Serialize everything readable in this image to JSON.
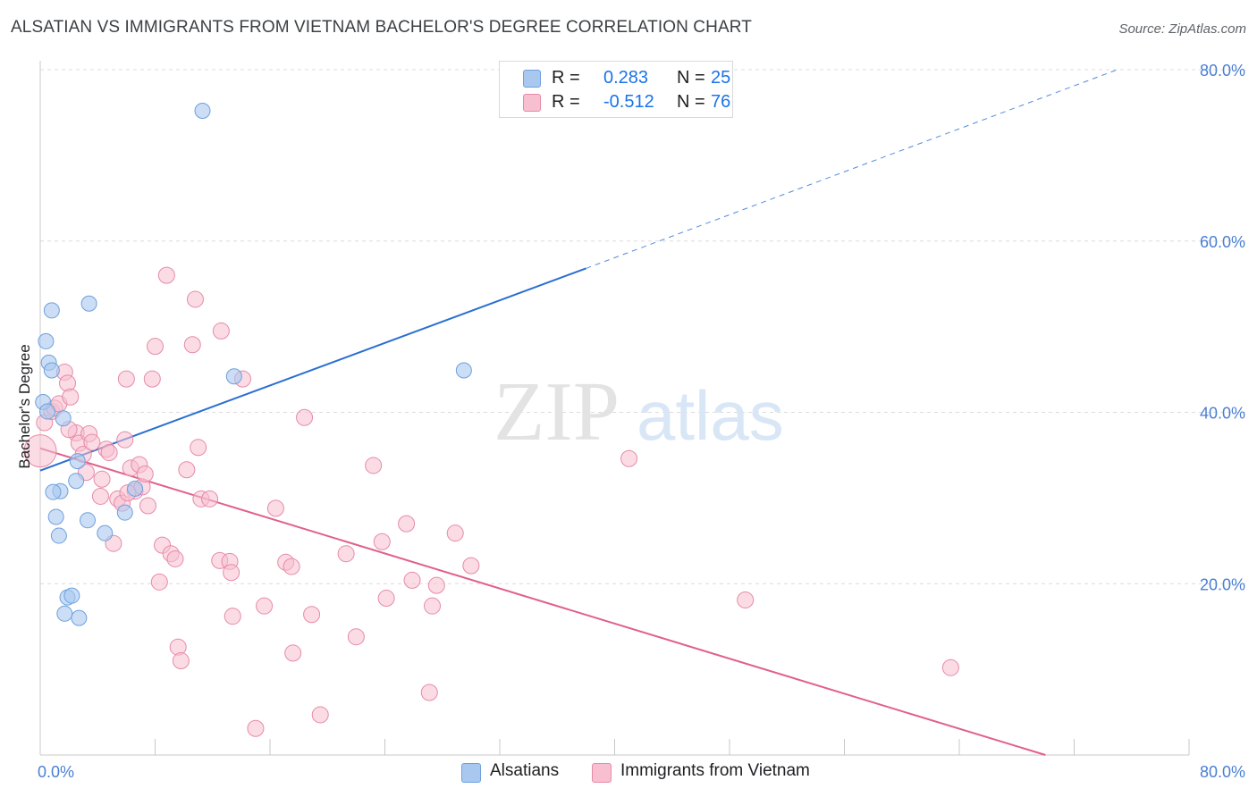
{
  "header": {
    "title": "ALSATIAN VS IMMIGRANTS FROM VIETNAM BACHELOR'S DEGREE CORRELATION CHART",
    "source": "Source: ZipAtlas.com"
  },
  "legend_stats": {
    "rows": [
      {
        "r_label": "R =",
        "r_value": "0.283",
        "n_label": "N =",
        "n_value": "25"
      },
      {
        "r_label": "R =",
        "r_value": "-0.512",
        "n_label": "N =",
        "n_value": "76"
      }
    ]
  },
  "bottom_legend": {
    "series_a": "Alsatians",
    "series_b": "Immigrants from Vietnam"
  },
  "watermark": {
    "zip": "ZIP",
    "atlas": "atlas"
  },
  "colors": {
    "blue_fill": "#a9c8f0",
    "blue_stroke": "#6ea0dc",
    "blue_line": "#2a6fd1",
    "pink_fill": "#f7bfd0",
    "pink_stroke": "#e68aa8",
    "pink_line": "#e0608c",
    "grid": "#dcdcdc",
    "tick_label": "#4a7fd4"
  },
  "chart_data": {
    "type": "scatter",
    "title": "ALSATIAN VS IMMIGRANTS FROM VIETNAM BACHELOR'S DEGREE CORRELATION CHART",
    "xlabel": "",
    "ylabel": "Bachelor's Degree",
    "xlim": [
      0,
      80
    ],
    "ylim": [
      0,
      80
    ],
    "x_tick_labels": [
      "0.0%",
      "80.0%"
    ],
    "y_tick_labels": [
      "20.0%",
      "40.0%",
      "60.0%",
      "80.0%"
    ],
    "y_tick_values": [
      20,
      40,
      60,
      80
    ],
    "grid": true,
    "series": [
      {
        "name": "Alsatians",
        "color": "#a9c8f0",
        "points": [
          [
            11.3,
            75.2
          ],
          [
            0.8,
            51.9
          ],
          [
            3.4,
            52.7
          ],
          [
            0.4,
            48.3
          ],
          [
            0.6,
            45.8
          ],
          [
            0.8,
            44.9
          ],
          [
            13.5,
            44.2
          ],
          [
            29.5,
            44.9
          ],
          [
            0.2,
            41.2
          ],
          [
            0.5,
            40.1
          ],
          [
            1.6,
            39.3
          ],
          [
            2.6,
            34.3
          ],
          [
            2.5,
            32.0
          ],
          [
            1.4,
            30.8
          ],
          [
            0.9,
            30.7
          ],
          [
            6.6,
            31.1
          ],
          [
            1.1,
            27.8
          ],
          [
            3.3,
            27.4
          ],
          [
            5.9,
            28.3
          ],
          [
            1.3,
            25.6
          ],
          [
            4.5,
            25.9
          ],
          [
            1.9,
            18.4
          ],
          [
            2.2,
            18.6
          ],
          [
            1.7,
            16.5
          ],
          [
            2.7,
            16.0
          ]
        ],
        "trend": {
          "x0": 0,
          "y0": 33.2,
          "x1": 38,
          "y1": 56.8,
          "dashed_to_x": 75,
          "dashed_to_y": 80.0
        }
      },
      {
        "name": "Immigrants from Vietnam",
        "color": "#f7bfd0",
        "points": [
          [
            0.0,
            35.5
          ],
          [
            0.3,
            38.8
          ],
          [
            0.8,
            40.1
          ],
          [
            1.0,
            40.5
          ],
          [
            1.3,
            41.0
          ],
          [
            1.7,
            44.7
          ],
          [
            1.9,
            43.4
          ],
          [
            2.1,
            41.8
          ],
          [
            2.5,
            37.6
          ],
          [
            2.7,
            36.4
          ],
          [
            3.0,
            35.1
          ],
          [
            3.2,
            33.0
          ],
          [
            3.4,
            37.5
          ],
          [
            3.6,
            36.5
          ],
          [
            4.2,
            30.2
          ],
          [
            4.3,
            32.2
          ],
          [
            4.6,
            35.7
          ],
          [
            4.8,
            35.3
          ],
          [
            5.1,
            24.7
          ],
          [
            5.4,
            29.9
          ],
          [
            5.7,
            29.4
          ],
          [
            5.9,
            36.8
          ],
          [
            6.0,
            43.9
          ],
          [
            6.3,
            33.5
          ],
          [
            6.6,
            30.8
          ],
          [
            6.9,
            33.9
          ],
          [
            7.1,
            31.3
          ],
          [
            7.3,
            32.8
          ],
          [
            7.5,
            29.1
          ],
          [
            7.8,
            43.9
          ],
          [
            8.0,
            47.7
          ],
          [
            8.3,
            20.2
          ],
          [
            8.5,
            24.5
          ],
          [
            8.8,
            56.0
          ],
          [
            9.1,
            23.5
          ],
          [
            9.4,
            22.9
          ],
          [
            9.6,
            12.6
          ],
          [
            9.8,
            11.0
          ],
          [
            10.2,
            33.3
          ],
          [
            10.6,
            47.9
          ],
          [
            10.8,
            53.2
          ],
          [
            11.0,
            35.9
          ],
          [
            11.2,
            29.9
          ],
          [
            11.8,
            29.9
          ],
          [
            12.6,
            49.5
          ],
          [
            12.5,
            22.7
          ],
          [
            13.2,
            22.6
          ],
          [
            13.3,
            21.3
          ],
          [
            13.4,
            16.2
          ],
          [
            14.1,
            43.9
          ],
          [
            15.0,
            3.1
          ],
          [
            15.6,
            17.4
          ],
          [
            16.4,
            28.8
          ],
          [
            17.1,
            22.5
          ],
          [
            17.5,
            22.0
          ],
          [
            17.6,
            11.9
          ],
          [
            18.4,
            39.4
          ],
          [
            18.9,
            16.4
          ],
          [
            19.5,
            4.7
          ],
          [
            21.3,
            23.5
          ],
          [
            22.0,
            13.8
          ],
          [
            23.2,
            33.8
          ],
          [
            23.8,
            24.9
          ],
          [
            24.1,
            18.3
          ],
          [
            25.5,
            27.0
          ],
          [
            25.9,
            20.4
          ],
          [
            27.1,
            7.3
          ],
          [
            27.3,
            17.4
          ],
          [
            27.6,
            19.8
          ],
          [
            28.9,
            25.9
          ],
          [
            30.0,
            22.1
          ],
          [
            41.0,
            34.6
          ],
          [
            49.1,
            18.1
          ],
          [
            63.4,
            10.2
          ],
          [
            2.0,
            38.0
          ],
          [
            6.1,
            30.6
          ]
        ],
        "trend": {
          "x0": 0,
          "y0": 35.8,
          "x1": 70,
          "y1": 0.0
        }
      }
    ]
  }
}
